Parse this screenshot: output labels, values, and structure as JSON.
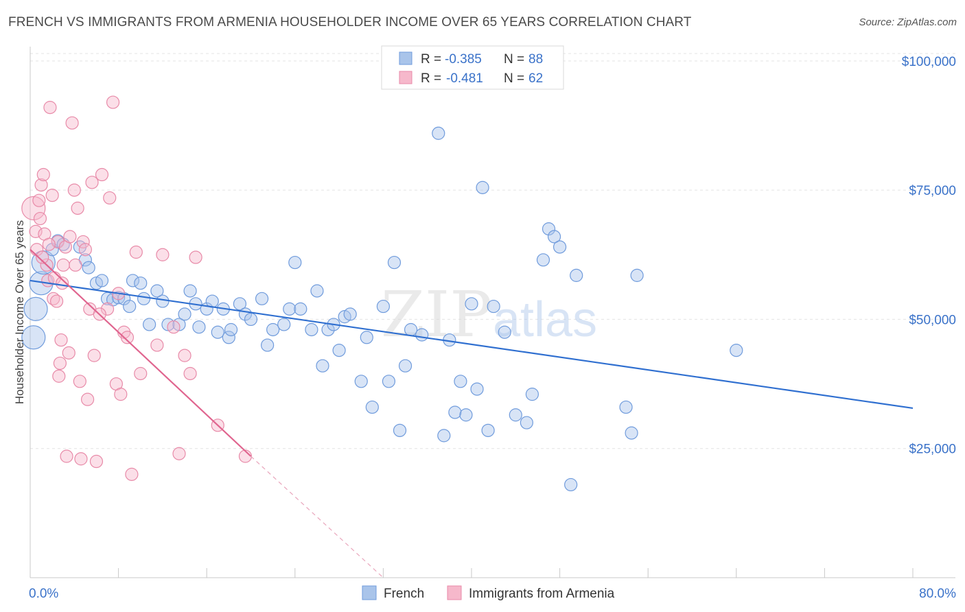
{
  "header": {
    "title": "FRENCH VS IMMIGRANTS FROM ARMENIA HOUSEHOLDER INCOME OVER 65 YEARS CORRELATION CHART",
    "source": "Source: ZipAtlas.com"
  },
  "watermark": {
    "zip": "ZIP",
    "atlas": "atlas"
  },
  "legend_top": {
    "rows": [
      {
        "r_label": "R =",
        "r_value": "-0.385",
        "n_label": "N =",
        "n_value": "88",
        "color": "#a9c4ea",
        "stroke": "#6f9bdc"
      },
      {
        "r_label": "R =",
        "r_value": "-0.481",
        "n_label": "N =",
        "n_value": "62",
        "color": "#f6b8cb",
        "stroke": "#e88aa8"
      }
    ]
  },
  "legend_bottom": {
    "items": [
      {
        "label": "French"
      },
      {
        "label": "Immigrants from Armenia"
      }
    ]
  },
  "chart_data": {
    "type": "scatter",
    "xlabel": "",
    "ylabel": "Householder Income Over 65 years",
    "x_tick_labels": [
      "0.0%",
      "80.0%"
    ],
    "y_tick_labels": [
      "$25,000",
      "$50,000",
      "$75,000",
      "$100,000"
    ],
    "y_ticks": [
      25000,
      50000,
      75000,
      100000
    ],
    "xlim": [
      0,
      80
    ],
    "ylim": [
      0,
      102500
    ],
    "grid": true,
    "legend_position": "bottom-center",
    "series": [
      {
        "name": "French",
        "color": "#a9c4ea",
        "stroke": "#6f9bdc",
        "trend": {
          "x": [
            0,
            80
          ],
          "y": [
            57500,
            32800
          ],
          "color": "#2f6fd0"
        },
        "points": [
          [
            0.3,
            46500
          ],
          [
            0.5,
            52000
          ],
          [
            1.0,
            57000
          ],
          [
            1.2,
            61000
          ],
          [
            2.0,
            63500
          ],
          [
            2.5,
            65200
          ],
          [
            3.0,
            64500
          ],
          [
            4.5,
            64000
          ],
          [
            5.0,
            61500
          ],
          [
            5.3,
            60000
          ],
          [
            6.0,
            57000
          ],
          [
            6.5,
            57500
          ],
          [
            7.0,
            54000
          ],
          [
            7.5,
            53800
          ],
          [
            8.0,
            54200
          ],
          [
            8.5,
            54000
          ],
          [
            9.0,
            52500
          ],
          [
            9.3,
            57500
          ],
          [
            10.0,
            57000
          ],
          [
            10.3,
            54000
          ],
          [
            10.8,
            49000
          ],
          [
            11.5,
            55500
          ],
          [
            12.0,
            53500
          ],
          [
            12.5,
            49000
          ],
          [
            13.5,
            49000
          ],
          [
            14.0,
            51000
          ],
          [
            14.5,
            55500
          ],
          [
            15.0,
            53000
          ],
          [
            15.3,
            48500
          ],
          [
            16.0,
            52000
          ],
          [
            16.5,
            53500
          ],
          [
            17.0,
            47500
          ],
          [
            17.5,
            52000
          ],
          [
            18.0,
            46500
          ],
          [
            18.2,
            48000
          ],
          [
            19.0,
            53000
          ],
          [
            19.5,
            51000
          ],
          [
            20.0,
            50000
          ],
          [
            21.0,
            54000
          ],
          [
            21.5,
            45000
          ],
          [
            22.0,
            48000
          ],
          [
            23.0,
            49000
          ],
          [
            23.5,
            52000
          ],
          [
            24.0,
            61000
          ],
          [
            24.5,
            52000
          ],
          [
            25.5,
            48000
          ],
          [
            26.0,
            55500
          ],
          [
            26.5,
            41000
          ],
          [
            27.0,
            48000
          ],
          [
            27.5,
            49000
          ],
          [
            28.0,
            44000
          ],
          [
            28.5,
            50500
          ],
          [
            29.0,
            51000
          ],
          [
            30.0,
            38000
          ],
          [
            30.5,
            46500
          ],
          [
            31.0,
            33000
          ],
          [
            32.0,
            52500
          ],
          [
            32.5,
            38000
          ],
          [
            33.0,
            61000
          ],
          [
            33.5,
            28500
          ],
          [
            34.0,
            41000
          ],
          [
            34.5,
            48000
          ],
          [
            35.5,
            47000
          ],
          [
            37.0,
            86000
          ],
          [
            37.5,
            27500
          ],
          [
            38.0,
            46000
          ],
          [
            38.5,
            32000
          ],
          [
            39.0,
            38000
          ],
          [
            39.5,
            31500
          ],
          [
            40.0,
            53000
          ],
          [
            40.5,
            36500
          ],
          [
            41.0,
            75500
          ],
          [
            41.5,
            28500
          ],
          [
            42.0,
            52500
          ],
          [
            43.0,
            47500
          ],
          [
            44.0,
            31500
          ],
          [
            45.0,
            30000
          ],
          [
            45.5,
            35500
          ],
          [
            46.5,
            61500
          ],
          [
            47.0,
            67500
          ],
          [
            47.5,
            66000
          ],
          [
            48.0,
            64000
          ],
          [
            49.0,
            18000
          ],
          [
            49.5,
            58500
          ],
          [
            54.0,
            33000
          ],
          [
            54.5,
            28000
          ],
          [
            55.0,
            58500
          ],
          [
            64.0,
            44000
          ]
        ]
      },
      {
        "name": "Immigrants from Armenia",
        "color": "#f6b8cb",
        "stroke": "#e88aa8",
        "trend": {
          "x": [
            0,
            20
          ],
          "y": [
            63500,
            23500
          ],
          "dash_to": [
            32,
            0
          ],
          "color": "#e0658f"
        },
        "points": [
          [
            0.3,
            71500
          ],
          [
            0.5,
            67000
          ],
          [
            0.6,
            63500
          ],
          [
            0.8,
            73000
          ],
          [
            1.0,
            76000
          ],
          [
            1.2,
            78000
          ],
          [
            1.3,
            66500
          ],
          [
            1.5,
            60500
          ],
          [
            1.6,
            57500
          ],
          [
            1.8,
            91000
          ],
          [
            2.0,
            74000
          ],
          [
            2.1,
            54000
          ],
          [
            2.2,
            58000
          ],
          [
            2.4,
            53500
          ],
          [
            2.5,
            65000
          ],
          [
            2.6,
            39000
          ],
          [
            2.8,
            46000
          ],
          [
            3.0,
            60500
          ],
          [
            3.2,
            64000
          ],
          [
            3.5,
            43500
          ],
          [
            3.8,
            88000
          ],
          [
            4.0,
            75000
          ],
          [
            4.3,
            71500
          ],
          [
            4.5,
            38000
          ],
          [
            4.8,
            65000
          ],
          [
            5.0,
            63500
          ],
          [
            5.2,
            34500
          ],
          [
            5.4,
            52000
          ],
          [
            5.6,
            76500
          ],
          [
            5.8,
            43000
          ],
          [
            6.0,
            22500
          ],
          [
            6.5,
            78000
          ],
          [
            7.0,
            52000
          ],
          [
            7.2,
            73500
          ],
          [
            7.5,
            92000
          ],
          [
            7.8,
            37500
          ],
          [
            8.0,
            55000
          ],
          [
            8.2,
            35500
          ],
          [
            8.5,
            47500
          ],
          [
            8.8,
            46500
          ],
          [
            9.2,
            20000
          ],
          [
            10.0,
            39500
          ],
          [
            11.5,
            45000
          ],
          [
            12.0,
            62500
          ],
          [
            13.0,
            48500
          ],
          [
            13.5,
            24000
          ],
          [
            14.0,
            43000
          ],
          [
            14.5,
            39500
          ],
          [
            15.0,
            62000
          ],
          [
            17.0,
            29500
          ],
          [
            19.5,
            23500
          ],
          [
            1.1,
            62000
          ],
          [
            2.7,
            41500
          ],
          [
            3.3,
            23500
          ],
          [
            4.1,
            60500
          ],
          [
            2.9,
            57000
          ],
          [
            0.9,
            69500
          ],
          [
            1.7,
            64500
          ],
          [
            3.6,
            66000
          ],
          [
            4.6,
            23000
          ],
          [
            6.3,
            51000
          ],
          [
            9.6,
            63000
          ]
        ]
      }
    ]
  }
}
